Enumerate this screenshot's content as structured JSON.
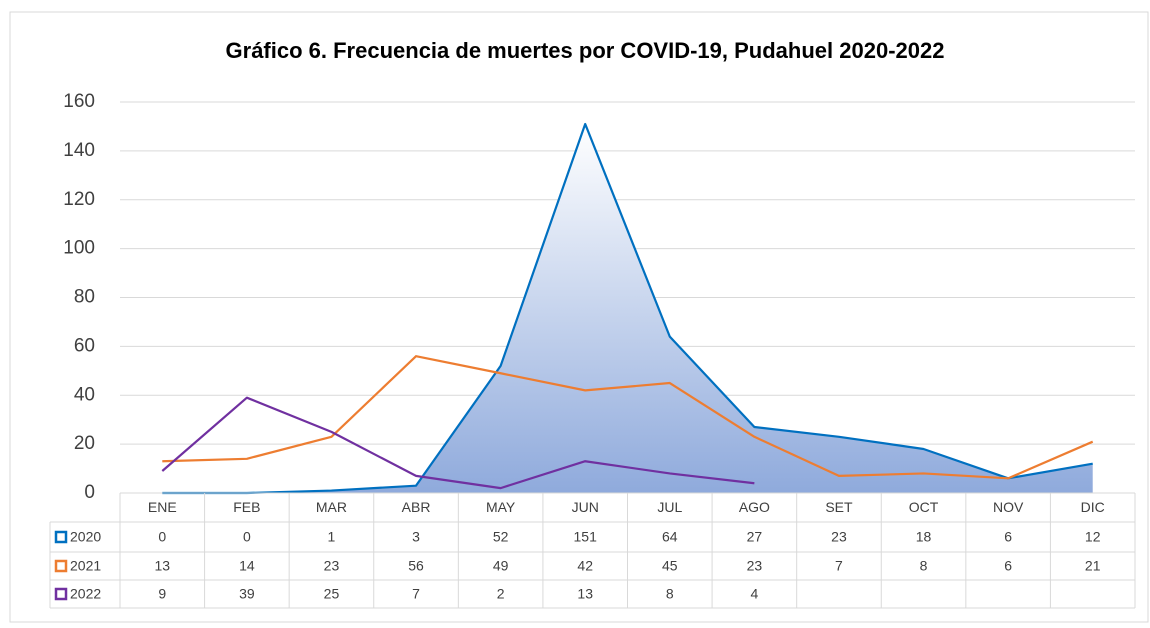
{
  "chart_data": {
    "type": "line",
    "title": "Gráfico 6. Frecuencia de muertes por COVID-19, Pudahuel 2020-2022",
    "categories": [
      "ENE",
      "FEB",
      "MAR",
      "ABR",
      "MAY",
      "JUN",
      "JUL",
      "AGO",
      "SET",
      "OCT",
      "NOV",
      "DIC"
    ],
    "series": [
      {
        "name": "2020",
        "color": "#0070c0",
        "area": true,
        "values": [
          0,
          0,
          1,
          3,
          52,
          151,
          64,
          27,
          23,
          18,
          6,
          12
        ]
      },
      {
        "name": "2021",
        "color": "#ed7d31",
        "values": [
          13,
          14,
          23,
          56,
          49,
          42,
          45,
          23,
          7,
          8,
          6,
          21
        ]
      },
      {
        "name": "2022",
        "color": "#7030a0",
        "values": [
          9,
          39,
          25,
          7,
          2,
          13,
          8,
          4,
          null,
          null,
          null,
          null
        ]
      }
    ],
    "ylim": [
      0,
      160
    ],
    "yticks": [
      0,
      20,
      40,
      60,
      80,
      100,
      120,
      140,
      160
    ],
    "grid": true
  }
}
